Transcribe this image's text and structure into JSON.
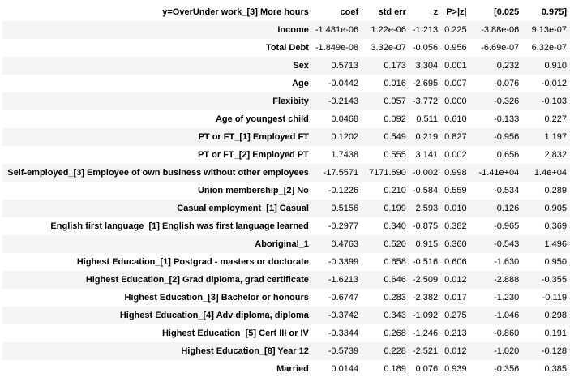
{
  "table": {
    "headers": [
      "y=OverUnder work_[3] More hours",
      "coef",
      "std err",
      "z",
      "P>|z|",
      "[0.025",
      "0.975]"
    ],
    "rows": [
      {
        "label": "Income",
        "cells": [
          "-1.481e-06",
          "1.22e-06",
          "-1.213",
          "0.225",
          "-3.88e-06",
          "9.13e-07"
        ]
      },
      {
        "label": "Total Debt",
        "cells": [
          "-1.849e-08",
          "3.32e-07",
          "-0.056",
          "0.956",
          "-6.69e-07",
          "6.32e-07"
        ]
      },
      {
        "label": "Sex",
        "cells": [
          "0.5713",
          "0.173",
          "3.304",
          "0.001",
          "0.232",
          "0.910"
        ]
      },
      {
        "label": "Age",
        "cells": [
          "-0.0442",
          "0.016",
          "-2.695",
          "0.007",
          "-0.076",
          "-0.012"
        ]
      },
      {
        "label": "Flexibity",
        "cells": [
          "-0.2143",
          "0.057",
          "-3.772",
          "0.000",
          "-0.326",
          "-0.103"
        ]
      },
      {
        "label": "Age of youngest child",
        "cells": [
          "0.0468",
          "0.092",
          "0.511",
          "0.610",
          "-0.133",
          "0.227"
        ]
      },
      {
        "label": "PT or FT_[1] Employed FT",
        "cells": [
          "0.1202",
          "0.549",
          "0.219",
          "0.827",
          "-0.956",
          "1.197"
        ]
      },
      {
        "label": "PT or FT_[2] Employed PT",
        "cells": [
          "1.7438",
          "0.555",
          "3.141",
          "0.002",
          "0.656",
          "2.832"
        ]
      },
      {
        "label": "Self-employed_[3] Employee of own business without other employees",
        "cells": [
          "-17.5571",
          "7171.690",
          "-0.002",
          "0.998",
          "-1.41e+04",
          "1.4e+04"
        ]
      },
      {
        "label": "Union membership_[2] No",
        "cells": [
          "-0.1226",
          "0.210",
          "-0.584",
          "0.559",
          "-0.534",
          "0.289"
        ]
      },
      {
        "label": "Casual employment_[1] Casual",
        "cells": [
          "0.5156",
          "0.199",
          "2.593",
          "0.010",
          "0.126",
          "0.905"
        ]
      },
      {
        "label": "English first language_[1] English was first language learned",
        "cells": [
          "-0.2977",
          "0.340",
          "-0.875",
          "0.382",
          "-0.965",
          "0.369"
        ]
      },
      {
        "label": "Aboriginal_1",
        "cells": [
          "0.4763",
          "0.520",
          "0.915",
          "0.360",
          "-0.543",
          "1.496"
        ]
      },
      {
        "label": "Highest Education_[1] Postgrad - masters or doctorate",
        "cells": [
          "-0.3399",
          "0.658",
          "-0.516",
          "0.606",
          "-1.630",
          "0.950"
        ]
      },
      {
        "label": "Highest Education_[2] Grad diploma, grad certificate",
        "cells": [
          "-1.6213",
          "0.646",
          "-2.509",
          "0.012",
          "-2.888",
          "-0.355"
        ]
      },
      {
        "label": "Highest Education_[3] Bachelor or honours",
        "cells": [
          "-0.6747",
          "0.283",
          "-2.382",
          "0.017",
          "-1.230",
          "-0.119"
        ]
      },
      {
        "label": "Highest Education_[4] Adv diploma, diploma",
        "cells": [
          "-0.3742",
          "0.343",
          "-1.092",
          "0.275",
          "-1.046",
          "0.298"
        ]
      },
      {
        "label": "Highest Education_[5] Cert III or IV",
        "cells": [
          "-0.3344",
          "0.268",
          "-1.246",
          "0.213",
          "-0.860",
          "0.191"
        ]
      },
      {
        "label": "Highest Education_[8] Year 12",
        "cells": [
          "-0.5739",
          "0.228",
          "-2.521",
          "0.012",
          "-1.020",
          "-0.128"
        ]
      },
      {
        "label": "Married",
        "cells": [
          "0.0144",
          "0.189",
          "0.076",
          "0.939",
          "-0.356",
          "0.385"
        ]
      }
    ]
  }
}
